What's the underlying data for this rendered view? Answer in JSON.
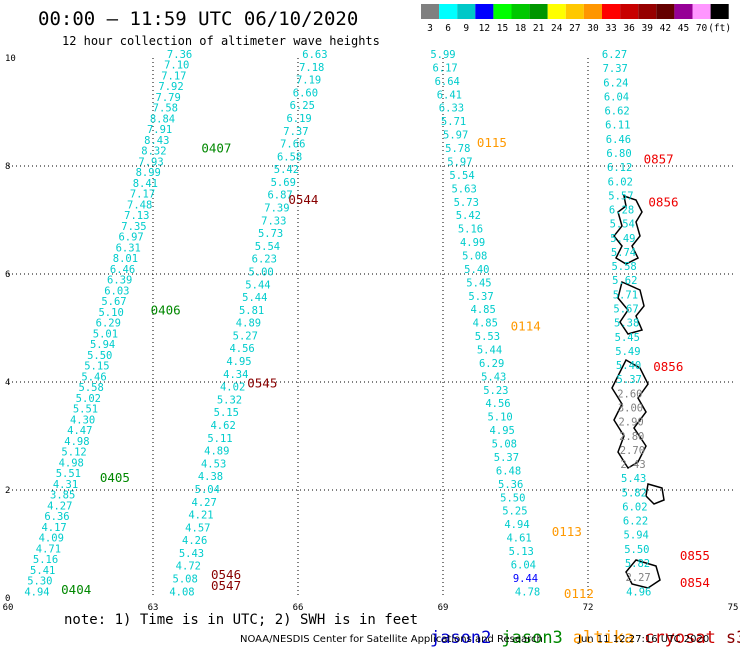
{
  "header": {
    "title": "00:00 – 11:59 UTC 06/10/2020",
    "subtitle": "12 hour collection of altimeter wave heights"
  },
  "colorbar": {
    "labels": [
      "3",
      "6",
      "9",
      "12",
      "15",
      "18",
      "21",
      "24",
      "27",
      "30",
      "33",
      "36",
      "39",
      "42",
      "45",
      "70",
      "(ft)"
    ],
    "colors": [
      "#808080",
      "#00ffff",
      "#00c8c8",
      "#0000ff",
      "#00ff00",
      "#00c800",
      "#009600",
      "#ffff00",
      "#ffc800",
      "#ff9600",
      "#ff0000",
      "#c80000",
      "#960000",
      "#640000",
      "#960096",
      "#ff96ff",
      "#000000"
    ]
  },
  "note": "note: 1) Time is in UTC; 2) SWH is in feet",
  "satellites": [
    {
      "name": "jason2",
      "color": "#0000cc"
    },
    {
      "name": "jason3",
      "color": "#008800"
    },
    {
      "name": "altika",
      "color": "#ff9900"
    },
    {
      "name": "cryosat",
      "color": "#cc0000"
    },
    {
      "name": "s3a",
      "color": "#880000"
    }
  ],
  "footer": {
    "credit": "NOAA/NESDIS Center for Satellite Applications and Research",
    "timestamp": "Jun 11 12:27:16 UTC 2020"
  },
  "chart_data": {
    "type": "scatter",
    "xlim": [
      60,
      75
    ],
    "ylim": [
      0,
      10
    ],
    "x_ticks": [
      {
        "value": 60,
        "label": "60"
      },
      {
        "value": 63,
        "label": "63"
      },
      {
        "value": 66,
        "label": "66"
      },
      {
        "value": 69,
        "label": "69"
      },
      {
        "value": 72,
        "label": "72"
      },
      {
        "value": 75,
        "label": "75"
      }
    ],
    "y_ticks": [
      {
        "value": 0,
        "label": "0"
      },
      {
        "value": 2,
        "label": "2"
      },
      {
        "value": 4,
        "label": "4"
      },
      {
        "value": 6,
        "label": "6"
      },
      {
        "value": 8,
        "label": "8"
      },
      {
        "value": 10,
        "label": "10"
      }
    ],
    "grid": "dotted",
    "tracks": [
      {
        "id": "track-a",
        "color": "#00cccc",
        "start": [
          60.6,
          0.05
        ],
        "end": [
          63.55,
          10.0
        ],
        "values": [
          "4.94",
          "5.30",
          "5.41",
          "5.16",
          "4.71",
          "4.09",
          "4.17",
          "6.36",
          "4.27",
          "3.85",
          "4.31",
          "5.51",
          "4.98",
          "5.12",
          "4.98",
          "4.47",
          "4.30",
          "5.51",
          "5.02",
          "5.58",
          "5.46",
          "5.15",
          "5.50",
          "5.94",
          "5.01",
          "6.29",
          "5.10",
          "5.67",
          "6.03",
          "6.39",
          "6.46",
          "8.01",
          "6.31",
          "6.97",
          "7.35",
          "7.13",
          "7.48",
          "7.17",
          "8.41",
          "8.99",
          "7.93",
          "8.32",
          "8.43",
          "7.91",
          "8.84",
          "7.58",
          "7.79",
          "7.92",
          "7.17",
          "7.10",
          "7.36"
        ]
      },
      {
        "id": "track-b",
        "color": "#00cccc",
        "start": [
          63.6,
          0.05
        ],
        "end": [
          66.35,
          10.0
        ],
        "values": [
          "4.08",
          "5.08",
          "4.72",
          "5.43",
          "4.26",
          "4.57",
          "4.21",
          "4.27",
          "5.04",
          "4.38",
          "4.53",
          "4.89",
          "5.11",
          "4.62",
          "5.15",
          "5.32",
          "4.02",
          "4.34",
          "4.95",
          "4.56",
          "5.27",
          "4.89",
          "5.81",
          "5.44",
          "5.44",
          "5.00",
          "6.23",
          "5.54",
          "5.73",
          "7.33",
          "7.39",
          "6.87",
          "5.69",
          "5.42",
          "6.58",
          "7.66",
          "7.37",
          "6.19",
          "6.25",
          "6.60",
          "7.19",
          "7.18",
          "6.63"
        ]
      },
      {
        "id": "track-c",
        "color": "#00cccc",
        "start": [
          70.75,
          0.05
        ],
        "end": [
          69.0,
          10.0
        ],
        "values": [
          "4.78",
          "9.44",
          "6.04",
          "5.13",
          "4.61",
          "4.94",
          "5.25",
          "5.50",
          "5.36",
          "6.48",
          "5.37",
          "5.08",
          "4.95",
          "5.10",
          "4.56",
          "5.23",
          "5.43",
          "6.29",
          "5.44",
          "5.53",
          "4.85",
          "4.85",
          "5.37",
          "5.45",
          "5.40",
          "5.08",
          "4.99",
          "5.16",
          "5.42",
          "5.73",
          "5.63",
          "5.54",
          "5.97",
          "5.78",
          "5.97",
          "5.71",
          "6.33",
          "6.41",
          "6.64",
          "6.17",
          "5.99"
        ]
      },
      {
        "id": "track-d",
        "color": "#00cccc",
        "start": [
          73.05,
          0.05
        ],
        "end": [
          72.55,
          10.0
        ],
        "values": [
          "4.96",
          "2.27",
          "5.82",
          "5.50",
          "5.94",
          "6.22",
          "6.02",
          "5.82",
          "5.43",
          "2.43",
          "2.70",
          "2.80",
          "2.90",
          "3.00",
          "2.60",
          "5.37",
          "5.40",
          "5.49",
          "5.45",
          "5.38",
          "5.67",
          "5.71",
          "5.62",
          "5.58",
          "5.74",
          "5.49",
          "5.54",
          "6.28",
          "5.57",
          "6.02",
          "6.12",
          "6.80",
          "6.46",
          "6.11",
          "6.62",
          "6.04",
          "6.24",
          "7.37",
          "6.27"
        ]
      }
    ],
    "annotations": [
      {
        "label": "0404",
        "x": 61.1,
        "y": 0.07,
        "color": "#008800"
      },
      {
        "label": "0405",
        "x": 61.9,
        "y": 2.15,
        "color": "#008800"
      },
      {
        "label": "0406",
        "x": 62.95,
        "y": 5.25,
        "color": "#008800"
      },
      {
        "label": "0407",
        "x": 64.0,
        "y": 8.25,
        "color": "#008800"
      },
      {
        "label": "0546",
        "x": 64.2,
        "y": 0.35,
        "color": "#880000"
      },
      {
        "label": "0547",
        "x": 64.2,
        "y": 0.15,
        "color": "#880000"
      },
      {
        "label": "0545",
        "x": 64.95,
        "y": 3.9,
        "color": "#880000"
      },
      {
        "label": "0544",
        "x": 65.8,
        "y": 7.3,
        "color": "#880000"
      },
      {
        "label": "0112",
        "x": 71.5,
        "y": 0.0,
        "color": "#ff9900"
      },
      {
        "label": "0113",
        "x": 71.25,
        "y": 1.15,
        "color": "#ff9900"
      },
      {
        "label": "0114",
        "x": 70.4,
        "y": 4.95,
        "color": "#ff9900"
      },
      {
        "label": "0115",
        "x": 69.7,
        "y": 8.35,
        "color": "#ff9900"
      },
      {
        "label": "0854",
        "x": 73.9,
        "y": 0.2,
        "color": "#ee0000"
      },
      {
        "label": "0855",
        "x": 73.9,
        "y": 0.7,
        "color": "#ee0000"
      },
      {
        "label": "0856",
        "x": 73.35,
        "y": 4.2,
        "color": "#ee0000"
      },
      {
        "label": "0856",
        "x": 73.25,
        "y": 7.25,
        "color": "#ee0000"
      },
      {
        "label": "0857",
        "x": 73.15,
        "y": 8.05,
        "color": "#ee0000"
      }
    ]
  }
}
